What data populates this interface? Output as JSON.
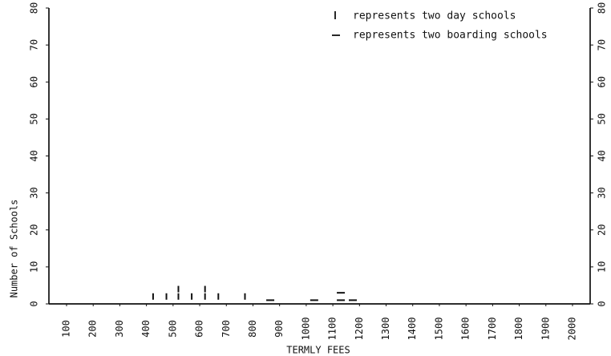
{
  "chart_data": {
    "type": "scatter",
    "xlabel": "TERMLY FEES",
    "ylabel": "Number of Schools",
    "x_ticks": [
      "100",
      "200",
      "300",
      "400",
      "500",
      "600",
      "700",
      "800",
      "900",
      "1000",
      "1100",
      "1200",
      "1300",
      "1400",
      "1500",
      "1600",
      "1700",
      "1800",
      "1900",
      "2000"
    ],
    "y_ticks": [
      "0",
      "10",
      "20",
      "30",
      "40",
      "50",
      "60",
      "70",
      "80"
    ],
    "right_y_ticks": [
      "0",
      "10",
      "20",
      "30",
      "40",
      "50",
      "60",
      "70",
      "80"
    ],
    "xlim": [
      50,
      2080
    ],
    "ylim": [
      0,
      80
    ],
    "legend": [
      {
        "symbol": "|",
        "label": "represents two day schools"
      },
      {
        "symbol": "–",
        "label": "represents two boarding schools"
      }
    ],
    "legend_position": "top-right",
    "grid": false,
    "series": [
      {
        "type": "day",
        "symbol": "vertical",
        "points": [
          {
            "x": 425,
            "y": 2
          },
          {
            "x": 475,
            "y": 2
          },
          {
            "x": 520,
            "y": 2
          },
          {
            "x": 520,
            "y": 4
          },
          {
            "x": 570,
            "y": 2
          },
          {
            "x": 620,
            "y": 2
          },
          {
            "x": 620,
            "y": 4
          },
          {
            "x": 670,
            "y": 2
          },
          {
            "x": 770,
            "y": 2
          }
        ]
      },
      {
        "type": "boarding",
        "symbol": "horizontal",
        "points": [
          {
            "x": 865,
            "y": 1
          },
          {
            "x": 1030,
            "y": 1
          },
          {
            "x": 1130,
            "y": 1
          },
          {
            "x": 1130,
            "y": 3
          },
          {
            "x": 1175,
            "y": 1
          }
        ]
      }
    ]
  }
}
